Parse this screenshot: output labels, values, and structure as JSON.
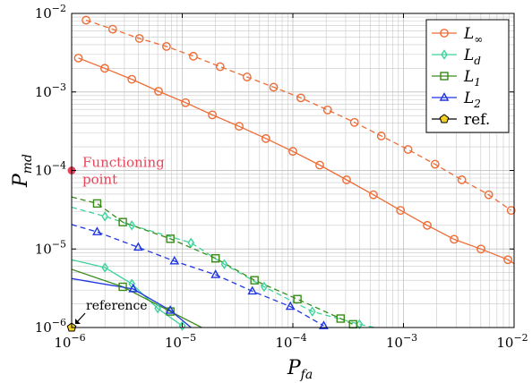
{
  "chart_data": {
    "type": "line",
    "xlabel": "P",
    "xlabel_sub": "fa",
    "ylabel": "P",
    "ylabel_sub": "md",
    "x_scale": "log",
    "y_scale": "log",
    "xlim": [
      1e-06,
      0.01
    ],
    "ylim": [
      1e-06,
      0.01
    ],
    "x_ticks": [
      {
        "value": 1e-06,
        "base": "10",
        "exp": "−6"
      },
      {
        "value": 1e-05,
        "base": "10",
        "exp": "−5"
      },
      {
        "value": 0.0001,
        "base": "10",
        "exp": "−4"
      },
      {
        "value": 0.001,
        "base": "10",
        "exp": "−3"
      },
      {
        "value": 0.01,
        "base": "10",
        "exp": "−2"
      }
    ],
    "y_ticks": [
      {
        "value": 1e-06,
        "base": "10",
        "exp": "−6"
      },
      {
        "value": 1e-05,
        "base": "10",
        "exp": "−5"
      },
      {
        "value": 0.0001,
        "base": "10",
        "exp": "−4"
      },
      {
        "value": 0.001,
        "base": "10",
        "exp": "−3"
      },
      {
        "value": 0.01,
        "base": "10",
        "exp": "−2"
      }
    ],
    "grid": true,
    "legend_position": "top-right",
    "series": [
      {
        "name": "L",
        "sub": "∞",
        "color": "#ee6c35",
        "marker": "circle",
        "style": "solid",
        "x": [
          1.15e-06,
          1.99e-06,
          3.5e-06,
          6.1e-06,
          1.07e-05,
          1.87e-05,
          3.27e-05,
          5.7e-05,
          0.0001,
          0.000175,
          0.000306,
          0.000535,
          0.00094,
          0.00164,
          0.00287,
          0.00502,
          0.0088,
          0.01
        ],
        "y": [
          0.0027,
          0.002,
          0.00145,
          0.00102,
          0.00073,
          0.00051,
          0.000365,
          0.000255,
          0.000175,
          0.000117,
          7.6e-05,
          4.9e-05,
          3.1e-05,
          2e-05,
          1.33e-05,
          1e-05,
          7.3e-06,
          6.5e-06
        ]
      },
      {
        "name": "L",
        "sub": "∞",
        "color": "#ee6c35",
        "marker": "circle",
        "style": "dashed",
        "x": [
          1.35e-06,
          2.35e-06,
          4.1e-06,
          7.2e-06,
          1.26e-05,
          2.2e-05,
          3.85e-05,
          6.7e-05,
          0.000118,
          0.000206,
          0.00036,
          0.00063,
          0.0011,
          0.00193,
          0.00337,
          0.0059,
          0.0094
        ],
        "y": [
          0.0082,
          0.0063,
          0.0048,
          0.0038,
          0.00285,
          0.0021,
          0.00155,
          0.00115,
          0.00084,
          0.00059,
          0.00041,
          0.000275,
          0.000185,
          0.00012,
          7.6e-05,
          4.9e-05,
          3.1e-05
        ]
      },
      {
        "name": "L",
        "sub": "d",
        "color": "#3dd39b",
        "marker": "diamond",
        "style": "solid",
        "x": [
          1e-06,
          2e-06,
          3.5e-06,
          6e-06,
          1e-05
        ],
        "y": [
          7.3e-06,
          5.8e-06,
          3.6e-06,
          1.75e-06,
          1.05e-06
        ]
      },
      {
        "name": "L",
        "sub": "d",
        "color": "#3dd39b",
        "marker": "diamond",
        "style": "dashed",
        "x": [
          1e-06,
          2e-06,
          3.5e-06,
          1.2e-05,
          2.4e-05,
          5.5e-05,
          0.00015,
          0.0004,
          0.00055
        ],
        "y": [
          3.4e-05,
          2.6e-05,
          2e-05,
          1.2e-05,
          6.4e-06,
          3.3e-06,
          1.6e-06,
          1.1e-06,
          1e-06
        ]
      },
      {
        "name": "L",
        "sub": "1",
        "color": "#3a8a1a",
        "marker": "square",
        "style": "solid",
        "x": [
          1e-06,
          2.9e-06,
          7.8e-06,
          1.5e-05
        ],
        "y": [
          5.5e-06,
          3.3e-06,
          1.6e-06,
          1e-06
        ]
      },
      {
        "name": "L",
        "sub": "1",
        "color": "#3a8a1a",
        "marker": "square",
        "style": "dashed",
        "x": [
          1e-06,
          1.7e-06,
          2.9e-06,
          7.8e-06,
          2e-05,
          4.5e-05,
          0.00011,
          0.00027,
          0.00035
        ],
        "y": [
          4.6e-05,
          3.8e-05,
          2.2e-05,
          1.35e-05,
          7.6e-06,
          4e-06,
          2.3e-06,
          1.3e-06,
          1.1e-06
        ]
      },
      {
        "name": "L",
        "sub": "2",
        "color": "#1f36e0",
        "marker": "triangle",
        "style": "solid",
        "x": [
          1e-06,
          3.6e-06,
          7.8e-06,
          1.2e-05
        ],
        "y": [
          4.2e-06,
          3.1e-06,
          1.65e-06,
          1e-06
        ]
      },
      {
        "name": "L",
        "sub": "2",
        "color": "#1f36e0",
        "marker": "triangle",
        "style": "dashed",
        "x": [
          1e-06,
          1.7e-06,
          4e-06,
          8.5e-06,
          2e-05,
          4.3e-05,
          9.5e-05,
          0.00019
        ],
        "y": [
          2.05e-05,
          1.65e-05,
          1.05e-05,
          7e-06,
          4.7e-06,
          2.9e-06,
          1.85e-06,
          1.05e-06
        ]
      },
      {
        "name": "ref.",
        "sub": "",
        "color": "#f5d020",
        "marker": "pentagon",
        "style": "none",
        "x": [
          1e-06
        ],
        "y": [
          1e-06
        ]
      }
    ],
    "annotations": [
      {
        "id": "functioning-point",
        "text_lines": [
          "Functioning",
          "point"
        ],
        "x": 1e-06,
        "y": 0.0001,
        "color": "#e8445a"
      },
      {
        "id": "reference",
        "text": "reference",
        "x": 1e-06,
        "y": 1e-06
      }
    ]
  }
}
